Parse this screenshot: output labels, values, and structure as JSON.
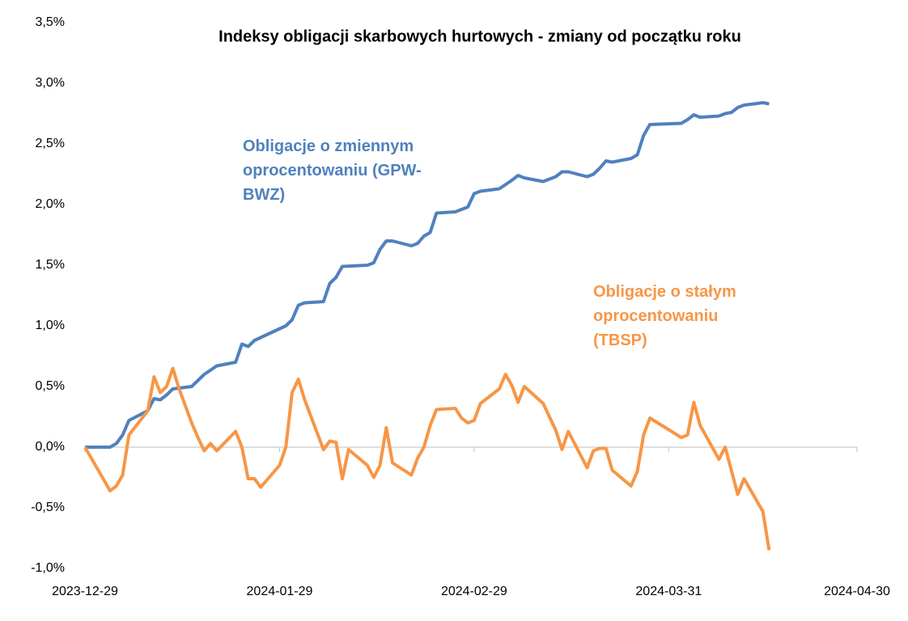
{
  "chart_data": {
    "type": "line",
    "title": "Indeksy obligacji skarbowych hurtowych - zmiany od początku roku",
    "ylim": [
      -1.0,
      3.5
    ],
    "yticks": [
      {
        "value": -1.0,
        "label": "-1,0%"
      },
      {
        "value": -0.5,
        "label": "-0,5%"
      },
      {
        "value": 0,
        "label": "0,0%"
      },
      {
        "value": 0.5,
        "label": "0,5%"
      },
      {
        "value": 1.0,
        "label": "1,0%"
      },
      {
        "value": 1.5,
        "label": "1,5%"
      },
      {
        "value": 2.0,
        "label": "2,0%"
      },
      {
        "value": 2.5,
        "label": "2,5%"
      },
      {
        "value": 3.0,
        "label": "3,0%"
      },
      {
        "value": 3.5,
        "label": "3,5%"
      }
    ],
    "xlim": [
      "2023-12-29",
      "2024-04-30"
    ],
    "xticks": [
      "2023-12-29",
      "2024-01-29",
      "2024-02-29",
      "2024-03-31",
      "2024-04-30"
    ],
    "series": [
      {
        "name": "Obligacje o zmiennym oprocentowaniu (GPW-BWZ)",
        "color": "#4f81bd",
        "x": [
          "2023-12-29",
          "2024-01-02",
          "2024-01-03",
          "2024-01-04",
          "2024-01-05",
          "2024-01-08",
          "2024-01-09",
          "2024-01-10",
          "2024-01-11",
          "2024-01-12",
          "2024-01-15",
          "2024-01-17",
          "2024-01-19",
          "2024-01-22",
          "2024-01-23",
          "2024-01-24",
          "2024-01-25",
          "2024-01-30",
          "2024-01-31",
          "2024-02-01",
          "2024-02-02",
          "2024-02-05",
          "2024-02-06",
          "2024-02-07",
          "2024-02-08",
          "2024-02-12",
          "2024-02-13",
          "2024-02-14",
          "2024-02-15",
          "2024-02-16",
          "2024-02-19",
          "2024-02-20",
          "2024-02-21",
          "2024-02-22",
          "2024-02-23",
          "2024-02-26",
          "2024-02-28",
          "2024-02-29",
          "2024-03-01",
          "2024-03-04",
          "2024-03-06",
          "2024-03-07",
          "2024-03-08",
          "2024-03-11",
          "2024-03-13",
          "2024-03-14",
          "2024-03-15",
          "2024-03-18",
          "2024-03-19",
          "2024-03-20",
          "2024-03-21",
          "2024-03-22",
          "2024-03-25",
          "2024-03-26",
          "2024-03-27",
          "2024-03-28",
          "2024-04-02",
          "2024-04-03",
          "2024-04-04",
          "2024-04-05",
          "2024-04-08",
          "2024-04-09",
          "2024-04-10",
          "2024-04-11",
          "2024-04-12",
          "2024-04-15",
          "2024-04-16"
        ],
        "values": [
          0,
          0,
          0.03,
          0.1,
          0.22,
          0.3,
          0.4,
          0.39,
          0.43,
          0.48,
          0.5,
          0.6,
          0.67,
          0.7,
          0.85,
          0.83,
          0.88,
          1.0,
          1.05,
          1.17,
          1.19,
          1.2,
          1.35,
          1.4,
          1.49,
          1.5,
          1.52,
          1.63,
          1.7,
          1.7,
          1.66,
          1.68,
          1.74,
          1.77,
          1.93,
          1.94,
          1.98,
          2.09,
          2.11,
          2.13,
          2.2,
          2.24,
          2.22,
          2.19,
          2.23,
          2.27,
          2.27,
          2.23,
          2.25,
          2.3,
          2.36,
          2.35,
          2.38,
          2.41,
          2.57,
          2.66,
          2.67,
          2.7,
          2.74,
          2.72,
          2.73,
          2.75,
          2.76,
          2.8,
          2.82,
          2.84,
          2.83
        ]
      },
      {
        "name": "Obligacje o stałym oprocentowaniu (TBSP)",
        "color": "#f79646",
        "x": [
          "2023-12-29",
          "2024-01-02",
          "2024-01-03",
          "2024-01-04",
          "2024-01-05",
          "2024-01-08",
          "2024-01-09",
          "2024-01-10",
          "2024-01-11",
          "2024-01-12",
          "2024-01-13",
          "2024-01-15",
          "2024-01-16",
          "2024-01-17",
          "2024-01-18",
          "2024-01-19",
          "2024-01-22",
          "2024-01-23",
          "2024-01-24",
          "2024-01-25",
          "2024-01-26",
          "2024-01-29",
          "2024-01-30",
          "2024-01-31",
          "2024-02-01",
          "2024-02-02",
          "2024-02-05",
          "2024-02-06",
          "2024-02-07",
          "2024-02-08",
          "2024-02-09",
          "2024-02-12",
          "2024-02-13",
          "2024-02-14",
          "2024-02-15",
          "2024-02-16",
          "2024-02-19",
          "2024-02-20",
          "2024-02-21",
          "2024-02-22",
          "2024-02-23",
          "2024-02-26",
          "2024-02-27",
          "2024-02-28",
          "2024-02-29",
          "2024-03-01",
          "2024-03-04",
          "2024-03-05",
          "2024-03-06",
          "2024-03-07",
          "2024-03-08",
          "2024-03-11",
          "2024-03-13",
          "2024-03-14",
          "2024-03-15",
          "2024-03-18",
          "2024-03-19",
          "2024-03-20",
          "2024-03-21",
          "2024-03-22",
          "2024-03-25",
          "2024-03-26",
          "2024-03-27",
          "2024-03-28",
          "2024-04-02",
          "2024-04-03",
          "2024-04-04",
          "2024-04-05",
          "2024-04-08",
          "2024-04-09",
          "2024-04-11",
          "2024-04-12",
          "2024-04-15",
          "2024-04-16"
        ],
        "values": [
          0,
          -0.36,
          -0.32,
          -0.23,
          0.1,
          0.3,
          0.58,
          0.45,
          0.5,
          0.65,
          0.48,
          0.2,
          0.08,
          -0.03,
          0.03,
          -0.03,
          0.13,
          0.0,
          -0.26,
          -0.26,
          -0.33,
          -0.15,
          0.0,
          0.45,
          0.56,
          0.39,
          -0.02,
          0.05,
          0.04,
          -0.26,
          -0.02,
          -0.15,
          -0.25,
          -0.15,
          0.16,
          -0.13,
          -0.23,
          -0.09,
          0.0,
          0.18,
          0.31,
          0.32,
          0.24,
          0.2,
          0.22,
          0.36,
          0.48,
          0.6,
          0.51,
          0.37,
          0.5,
          0.36,
          0.14,
          -0.02,
          0.13,
          -0.17,
          -0.03,
          -0.01,
          -0.01,
          -0.19,
          -0.32,
          -0.2,
          0.1,
          0.24,
          0.08,
          0.1,
          0.37,
          0.18,
          -0.1,
          0.0,
          -0.39,
          -0.26,
          -0.53,
          -0.85
        ]
      }
    ]
  }
}
